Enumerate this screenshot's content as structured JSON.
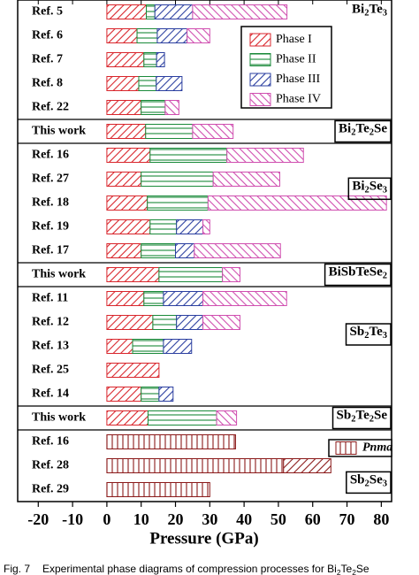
{
  "chart_data": {
    "type": "range_bar",
    "x_label": "Pressure (GPa)",
    "caption_label": "Fig. 7",
    "caption": "Experimental phase diagrams of compression processes for Bi2Te2Se",
    "xlim": [
      -26,
      83
    ],
    "xticks": [
      -20,
      -10,
      0,
      10,
      20,
      30,
      40,
      50,
      60,
      70,
      80
    ],
    "legend": "upper right",
    "groups": [
      {
        "label": "Bi2Te3",
        "categories": [
          "Ref. 5",
          "Ref. 6",
          "Ref. 7",
          "Ref. 8",
          "Ref. 22"
        ]
      },
      {
        "label": "Bi2Te2Se",
        "categories": [
          "This work"
        ]
      },
      {
        "label": "Bi2Se3",
        "categories": [
          "Ref. 16",
          "Ref. 27",
          "Ref. 18",
          "Ref. 19",
          "Ref. 17"
        ]
      },
      {
        "label": "BiSbTeSe2",
        "categories": [
          "This work"
        ]
      },
      {
        "label": "Sb2Te3",
        "categories": [
          "Ref. 11",
          "Ref. 12",
          "Ref. 13",
          "Ref. 25",
          "Ref. 14"
        ]
      },
      {
        "label": "Sb2Te2Se",
        "categories": [
          "This work"
        ]
      },
      {
        "label": "Sb2Se3",
        "categories": [
          "Ref. 16",
          "Ref. 28",
          "Ref. 29"
        ]
      }
    ],
    "series": [
      {
        "name": "Phase I",
        "color": "#d9262c",
        "hatch": "/",
        "values": [
          [
            0,
            11.5
          ],
          [
            0,
            8.8
          ],
          [
            0,
            10.8
          ],
          [
            0,
            9.3
          ],
          [
            0,
            10
          ],
          [
            0,
            11.3
          ],
          [
            0,
            12.6
          ],
          [
            0,
            10
          ],
          [
            0,
            11.8
          ],
          [
            0,
            12.6
          ],
          [
            0,
            10
          ],
          [
            0,
            15.2
          ],
          [
            0,
            10.8
          ],
          [
            0,
            13.4
          ],
          [
            0,
            7.5
          ],
          [
            0,
            15.2
          ],
          [
            0,
            10
          ],
          [
            0,
            12
          ],
          null,
          null,
          null
        ]
      },
      {
        "name": "Phase II",
        "color": "#1a8a3a",
        "hatch": "-",
        "values": [
          [
            11.5,
            14
          ],
          [
            8.8,
            14.7
          ],
          [
            10.8,
            14.5
          ],
          [
            9.3,
            14.4
          ],
          [
            10,
            17
          ],
          [
            11.3,
            25
          ],
          [
            12.6,
            35
          ],
          [
            10,
            31
          ],
          [
            11.8,
            29.5
          ],
          [
            12.6,
            20.3
          ],
          [
            10,
            20
          ],
          [
            15.2,
            33.7
          ],
          [
            10.8,
            16.5
          ],
          [
            13.4,
            20.3
          ],
          [
            7.5,
            16.5
          ],
          null,
          [
            10,
            15.2
          ],
          [
            12,
            32
          ],
          null,
          null,
          null
        ]
      },
      {
        "name": "Phase III",
        "color": "#2b3fa0",
        "hatch": "/",
        "values": [
          [
            14,
            25
          ],
          [
            14.7,
            23.4
          ],
          [
            14.5,
            16.8
          ],
          [
            14.4,
            21.9
          ],
          null,
          null,
          null,
          null,
          null,
          [
            20.3,
            28
          ],
          [
            20,
            25.5
          ],
          null,
          [
            16.5,
            28
          ],
          [
            20.3,
            28
          ],
          [
            16.5,
            24.7
          ],
          null,
          [
            15.2,
            19.3
          ],
          null,
          null,
          null,
          null
        ]
      },
      {
        "name": "Phase IV",
        "color": "#d04fb0",
        "hatch": "\\",
        "values": [
          [
            25,
            52.5
          ],
          [
            23.4,
            30
          ],
          null,
          null,
          [
            17,
            21
          ],
          [
            25,
            36.8
          ],
          [
            35,
            57.3
          ],
          [
            31,
            50.4
          ],
          [
            29.5,
            81.5
          ],
          [
            28,
            30
          ],
          [
            25.5,
            50.6
          ],
          [
            33.7,
            38.8
          ],
          [
            28,
            52.4
          ],
          [
            28,
            38.8
          ],
          null,
          null,
          null,
          [
            32,
            37.8
          ],
          null,
          null,
          null
        ]
      },
      {
        "name": "Pnma",
        "color": "#8b1a1a",
        "hatch": "|",
        "values": [
          null,
          null,
          null,
          null,
          null,
          null,
          null,
          null,
          null,
          null,
          null,
          null,
          null,
          null,
          null,
          null,
          null,
          null,
          [
            0,
            37.5
          ],
          [
            0,
            51.5
          ],
          [
            0,
            30
          ]
        ]
      },
      {
        "color": "#8b1a1a",
        "hatch": "/",
        "values": [
          null,
          null,
          null,
          null,
          null,
          null,
          null,
          null,
          null,
          null,
          null,
          null,
          null,
          null,
          null,
          null,
          null,
          null,
          null,
          [
            51.5,
            65.3
          ],
          null
        ]
      }
    ]
  }
}
